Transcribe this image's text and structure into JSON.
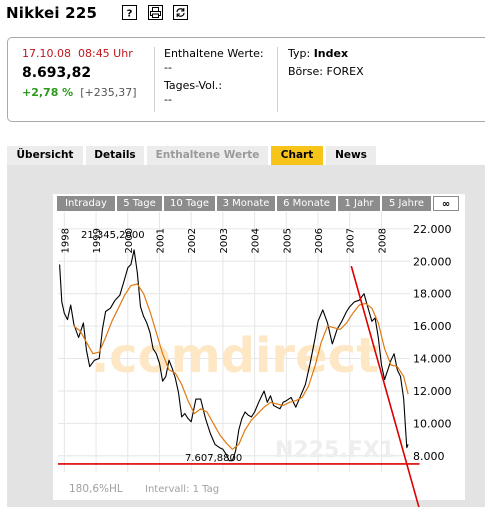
{
  "header": {
    "title": "Nikkei 225",
    "buttons": [
      {
        "name": "help-icon",
        "glyph": "?"
      },
      {
        "name": "print-icon"
      },
      {
        "name": "refresh-icon"
      }
    ]
  },
  "quote": {
    "date": "17.10.08",
    "time": "08:45 Uhr",
    "price": "8.693,82",
    "change_pct": "+2,78 %",
    "change_abs": "[+235,37]",
    "contained_label": "Enthaltene Werte:",
    "contained_value": "--",
    "volume_label": "Tages-Vol.:",
    "volume_value": "--",
    "type_label": "Typ:",
    "type_value": "Index",
    "exchange_label": "Börse:",
    "exchange_value": "FOREX"
  },
  "tabs": [
    {
      "label": "Übersicht",
      "state": "normal"
    },
    {
      "label": "Details",
      "state": "normal"
    },
    {
      "label": "Enthaltene Werte",
      "state": "disabled"
    },
    {
      "label": "Chart",
      "state": "active"
    },
    {
      "label": "News",
      "state": "normal"
    }
  ],
  "ranges": [
    "Intraday",
    "5 Tage",
    "10 Tage",
    "3 Monate",
    "6 Monate",
    "1 Jahr",
    "5 Jahre",
    "∞"
  ],
  "ranges_selected": "∞",
  "chart": {
    "watermark": ".comdirect",
    "symbol_watermark": "N225.FX1",
    "bottom_left": "180,6%HL",
    "interval": "Intervall: 1 Tag",
    "max_label": "21.345,2000",
    "min_label": "7.607,8800",
    "colors": {
      "price": "#000000",
      "average": "#e07a12",
      "trendline": "#dd0000",
      "watermark": "#fde7c4"
    }
  },
  "chart_data": {
    "type": "line",
    "x_tick_labels": [
      "1998",
      "1999",
      "2000",
      "2001",
      "2002",
      "2003",
      "2004",
      "2005",
      "2006",
      "2007",
      "2008"
    ],
    "y_tick_labels": [
      "8.000",
      "10.000",
      "12.000",
      "14.000",
      "16.000",
      "18.000",
      "20.000",
      "22.000"
    ],
    "ylim": [
      7000,
      22300
    ],
    "xlim": [
      1997.8,
      2008.9
    ],
    "grid": true,
    "series": [
      {
        "values": [
          [
            1997.85,
            19800
          ],
          [
            1997.92,
            17500
          ],
          [
            1998.0,
            16800
          ],
          [
            1998.1,
            16400
          ],
          [
            1998.2,
            17300
          ],
          [
            1998.3,
            16100
          ],
          [
            1998.45,
            15300
          ],
          [
            1998.6,
            16200
          ],
          [
            1998.7,
            14500
          ],
          [
            1998.8,
            13500
          ],
          [
            1998.95,
            13900
          ],
          [
            1999.1,
            14000
          ],
          [
            1999.2,
            15800
          ],
          [
            1999.3,
            16900
          ],
          [
            1999.45,
            17100
          ],
          [
            1999.6,
            17600
          ],
          [
            1999.75,
            17900
          ],
          [
            1999.9,
            18900
          ],
          [
            2000.0,
            19600
          ],
          [
            2000.1,
            19800
          ],
          [
            2000.2,
            20700
          ],
          [
            2000.3,
            19300
          ],
          [
            2000.4,
            17200
          ],
          [
            2000.5,
            16600
          ],
          [
            2000.6,
            16200
          ],
          [
            2000.7,
            15600
          ],
          [
            2000.8,
            14600
          ],
          [
            2000.9,
            14300
          ],
          [
            2001.0,
            13700
          ],
          [
            2001.1,
            12600
          ],
          [
            2001.2,
            12900
          ],
          [
            2001.3,
            13900
          ],
          [
            2001.4,
            13400
          ],
          [
            2001.5,
            12800
          ],
          [
            2001.6,
            11900
          ],
          [
            2001.7,
            10400
          ],
          [
            2001.8,
            10600
          ],
          [
            2001.9,
            10300
          ],
          [
            2002.0,
            10100
          ],
          [
            2002.15,
            11500
          ],
          [
            2002.3,
            11500
          ],
          [
            2002.45,
            10300
          ],
          [
            2002.6,
            9400
          ],
          [
            2002.75,
            8700
          ],
          [
            2002.9,
            8500
          ],
          [
            2003.0,
            8400
          ],
          [
            2003.1,
            8100
          ],
          [
            2003.2,
            7700
          ],
          [
            2003.3,
            7700
          ],
          [
            2003.4,
            8300
          ],
          [
            2003.5,
            9600
          ],
          [
            2003.6,
            10300
          ],
          [
            2003.7,
            10700
          ],
          [
            2003.8,
            10500
          ],
          [
            2003.9,
            10400
          ],
          [
            2004.0,
            10700
          ],
          [
            2004.15,
            11400
          ],
          [
            2004.3,
            12000
          ],
          [
            2004.4,
            11300
          ],
          [
            2004.5,
            11700
          ],
          [
            2004.6,
            11100
          ],
          [
            2004.7,
            11000
          ],
          [
            2004.8,
            10900
          ],
          [
            2004.9,
            11300
          ],
          [
            2005.0,
            11400
          ],
          [
            2005.15,
            11600
          ],
          [
            2005.3,
            11000
          ],
          [
            2005.45,
            11700
          ],
          [
            2005.6,
            12400
          ],
          [
            2005.75,
            13700
          ],
          [
            2005.9,
            15200
          ],
          [
            2006.0,
            16300
          ],
          [
            2006.15,
            17000
          ],
          [
            2006.3,
            16200
          ],
          [
            2006.45,
            14900
          ],
          [
            2006.6,
            15800
          ],
          [
            2006.75,
            16300
          ],
          [
            2006.9,
            16900
          ],
          [
            2007.0,
            17200
          ],
          [
            2007.15,
            17500
          ],
          [
            2007.3,
            17600
          ],
          [
            2007.45,
            18000
          ],
          [
            2007.55,
            17300
          ],
          [
            2007.7,
            16300
          ],
          [
            2007.8,
            16500
          ],
          [
            2007.9,
            15300
          ],
          [
            2008.0,
            13600
          ],
          [
            2008.1,
            12700
          ],
          [
            2008.2,
            13300
          ],
          [
            2008.3,
            13900
          ],
          [
            2008.4,
            14300
          ],
          [
            2008.5,
            13300
          ],
          [
            2008.6,
            12900
          ],
          [
            2008.7,
            11500
          ],
          [
            2008.75,
            10000
          ],
          [
            2008.8,
            8500
          ],
          [
            2008.84,
            8700
          ]
        ]
      },
      {
        "values": [
          [
            1998.3,
            16000
          ],
          [
            1998.5,
            15700
          ],
          [
            1998.7,
            15000
          ],
          [
            1998.9,
            14300
          ],
          [
            1999.1,
            14400
          ],
          [
            1999.3,
            15300
          ],
          [
            1999.5,
            16300
          ],
          [
            1999.7,
            17100
          ],
          [
            1999.9,
            17900
          ],
          [
            2000.1,
            18500
          ],
          [
            2000.3,
            18600
          ],
          [
            2000.5,
            18000
          ],
          [
            2000.7,
            16900
          ],
          [
            2000.9,
            15600
          ],
          [
            2001.1,
            14300
          ],
          [
            2001.3,
            13300
          ],
          [
            2001.5,
            13100
          ],
          [
            2001.7,
            12400
          ],
          [
            2001.9,
            11400
          ],
          [
            2002.1,
            10600
          ],
          [
            2002.3,
            10900
          ],
          [
            2002.5,
            10700
          ],
          [
            2002.7,
            10000
          ],
          [
            2002.9,
            9300
          ],
          [
            2003.1,
            8800
          ],
          [
            2003.3,
            8400
          ],
          [
            2003.5,
            8700
          ],
          [
            2003.7,
            9600
          ],
          [
            2003.9,
            10200
          ],
          [
            2004.1,
            10600
          ],
          [
            2004.3,
            11000
          ],
          [
            2004.5,
            11300
          ],
          [
            2004.7,
            11200
          ],
          [
            2004.9,
            11100
          ],
          [
            2005.1,
            11300
          ],
          [
            2005.3,
            11400
          ],
          [
            2005.5,
            11600
          ],
          [
            2005.7,
            12300
          ],
          [
            2005.9,
            13500
          ],
          [
            2006.1,
            15000
          ],
          [
            2006.3,
            16000
          ],
          [
            2006.5,
            15900
          ],
          [
            2006.7,
            15800
          ],
          [
            2006.9,
            16200
          ],
          [
            2007.1,
            16800
          ],
          [
            2007.3,
            17300
          ],
          [
            2007.5,
            17400
          ],
          [
            2007.7,
            17100
          ],
          [
            2007.9,
            16200
          ],
          [
            2008.1,
            14600
          ],
          [
            2008.3,
            13600
          ],
          [
            2008.5,
            13500
          ],
          [
            2008.7,
            12900
          ],
          [
            2008.84,
            11800
          ]
        ]
      },
      {
        "values": [
          [
            2007.05,
            19700
          ],
          [
            2009.2,
            4700
          ]
        ]
      },
      {
        "values": [
          [
            1997.8,
            7500
          ],
          [
            2009.2,
            7500
          ]
        ]
      }
    ]
  }
}
